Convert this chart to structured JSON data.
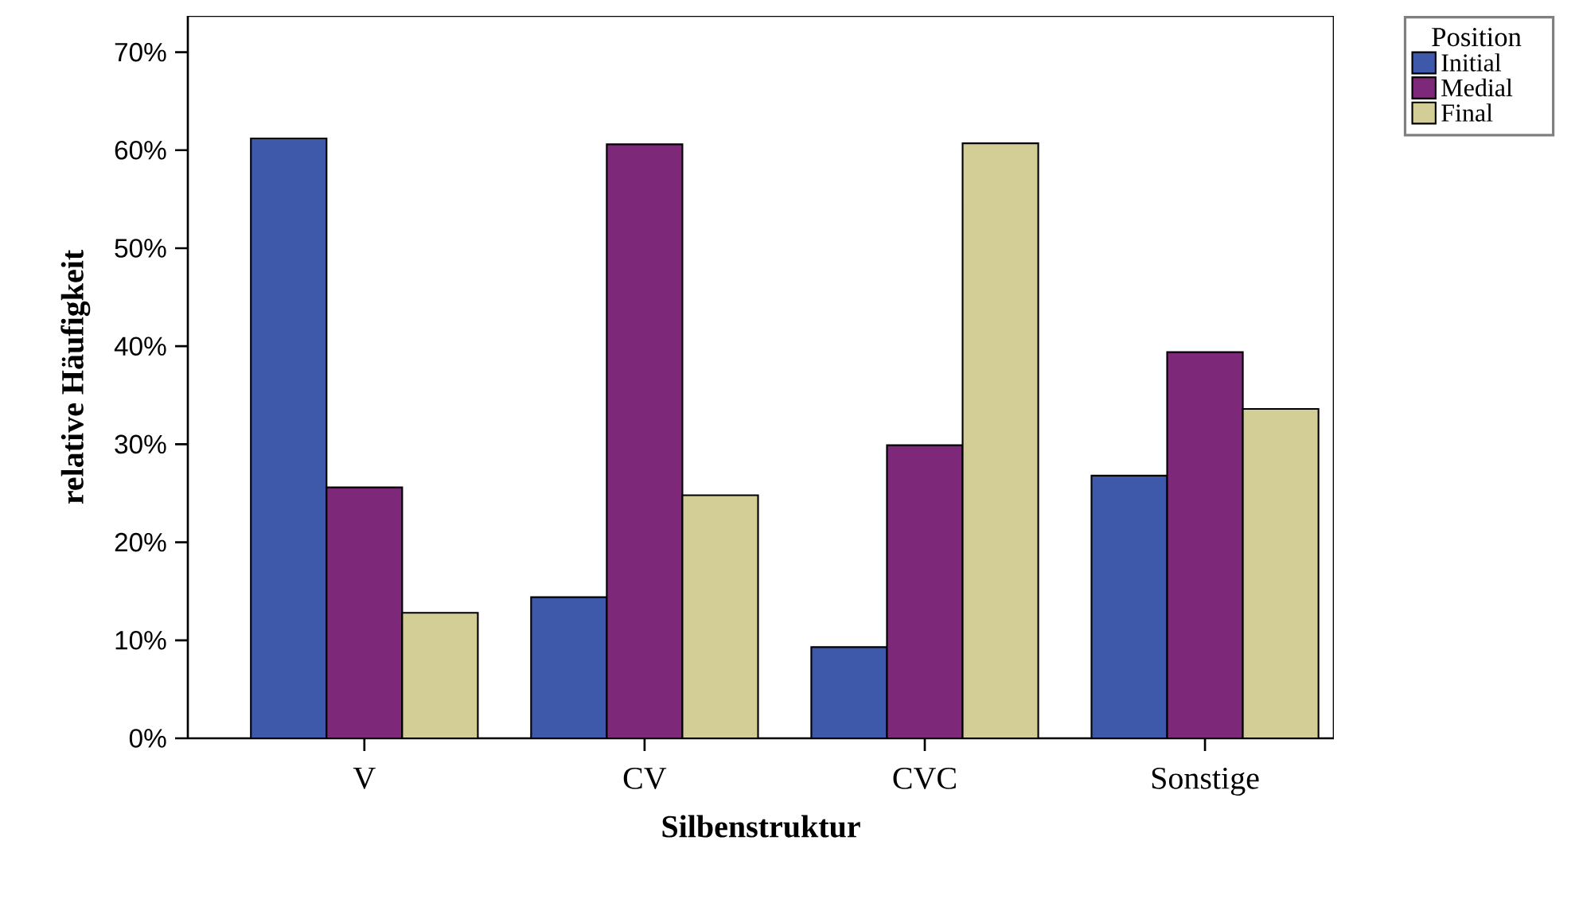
{
  "chart_data": {
    "type": "bar",
    "xlabel": "Silbenstruktur",
    "ylabel": "relative Häufigkeit",
    "legend_title": "Position",
    "categories": [
      "V",
      "CV",
      "CVC",
      "Sonstige"
    ],
    "series": [
      {
        "name": "Initial",
        "color": "#3e58aa",
        "values": [
          61.2,
          14.4,
          9.3,
          26.8
        ]
      },
      {
        "name": "Medial",
        "color": "#7d2878",
        "values": [
          25.6,
          60.6,
          29.9,
          39.4
        ]
      },
      {
        "name": "Final",
        "color": "#d3ce96",
        "values": [
          12.8,
          24.8,
          60.7,
          33.6
        ]
      }
    ],
    "ylim": [
      0,
      73.7
    ],
    "yticks": [
      {
        "value": 0,
        "label": "0%"
      },
      {
        "value": 10,
        "label": "10%"
      },
      {
        "value": 20,
        "label": "20%"
      },
      {
        "value": 30,
        "label": "30%"
      },
      {
        "value": 40,
        "label": "40%"
      },
      {
        "value": 50,
        "label": "50%"
      },
      {
        "value": 60,
        "label": "60%"
      },
      {
        "value": 70,
        "label": "70%"
      }
    ],
    "grid": false,
    "legend": "top right"
  }
}
